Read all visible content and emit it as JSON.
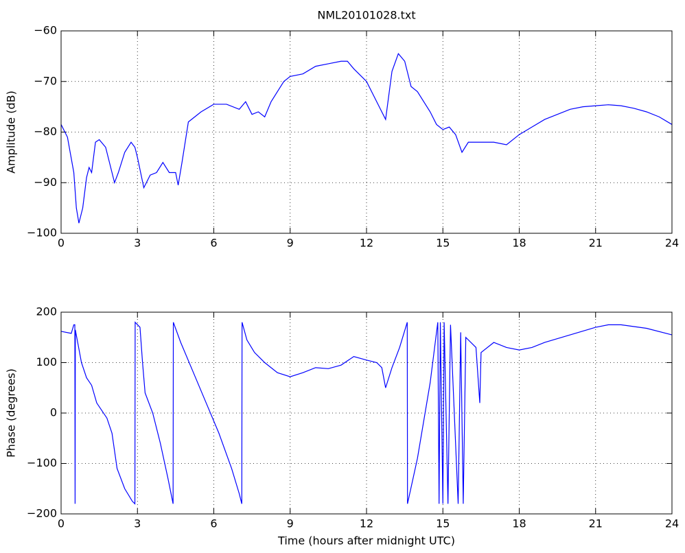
{
  "chart_data": [
    {
      "type": "line",
      "title": "NML20101028.txt",
      "ylabel": "Amplitude (dB)",
      "color": "#0000ff",
      "grid": true,
      "xlim": [
        0,
        24
      ],
      "xticks": [
        0,
        3,
        6,
        9,
        12,
        15,
        18,
        21,
        24
      ],
      "ylim": [
        -100,
        -60
      ],
      "yticks": [
        {
          "value": -100,
          "label": "−100"
        },
        {
          "value": -90,
          "label": "−90"
        },
        {
          "value": -80,
          "label": "−80"
        },
        {
          "value": -70,
          "label": "−70"
        },
        {
          "value": -60,
          "label": "−60"
        }
      ],
      "x": [
        0,
        0.25,
        0.5,
        0.6,
        0.7,
        0.85,
        1.0,
        1.1,
        1.2,
        1.35,
        1.5,
        1.75,
        2.0,
        2.1,
        2.25,
        2.5,
        2.75,
        2.9,
        3.0,
        3.25,
        3.5,
        3.75,
        4.0,
        4.25,
        4.5,
        4.6,
        4.75,
        5.0,
        5.5,
        6.0,
        6.5,
        7.0,
        7.25,
        7.5,
        7.75,
        8.0,
        8.25,
        8.75,
        9.0,
        9.5,
        10.0,
        10.5,
        11.0,
        11.25,
        11.5,
        12.0,
        12.5,
        12.75,
        13.0,
        13.25,
        13.5,
        13.75,
        14.0,
        14.5,
        14.75,
        15.0,
        15.25,
        15.5,
        15.75,
        16.0,
        16.5,
        17.0,
        17.5,
        18.0,
        18.5,
        19.0,
        19.5,
        20.0,
        20.5,
        21.0,
        21.5,
        22.0,
        22.5,
        23.0,
        23.5,
        24.0
      ],
      "values": [
        -78.5,
        -81,
        -88,
        -95,
        -98,
        -95,
        -89,
        -87,
        -88,
        -82,
        -81.5,
        -83,
        -88,
        -90,
        -88,
        -84,
        -82,
        -83,
        -85,
        -91,
        -88.5,
        -88,
        -86,
        -88,
        -88,
        -90.5,
        -86,
        -78,
        -76,
        -74.5,
        -74.5,
        -75.5,
        -74,
        -76.5,
        -76,
        -77,
        -74,
        -70,
        -69,
        -68.5,
        -67,
        -66.5,
        -66,
        -66,
        -67.5,
        -70,
        -75,
        -77.5,
        -68,
        -64.5,
        -66,
        -71,
        -72,
        -76,
        -78.5,
        -79.5,
        -79,
        -80.5,
        -84,
        -82,
        -82,
        -82,
        -82.5,
        -80.5,
        -79,
        -77.5,
        -76.5,
        -75.5,
        -75,
        -74.8,
        -74.6,
        -74.8,
        -75.3,
        -76,
        -77,
        -78.5
      ]
    },
    {
      "type": "line",
      "ylabel": "Phase (degrees)",
      "xlabel": "Time (hours after midnight UTC)",
      "color": "#0000ff",
      "grid": true,
      "xlim": [
        0,
        24
      ],
      "xticks": [
        0,
        3,
        6,
        9,
        12,
        15,
        18,
        21,
        24
      ],
      "ylim": [
        -200,
        200
      ],
      "yticks": [
        {
          "value": -200,
          "label": "−200"
        },
        {
          "value": -100,
          "label": "−100"
        },
        0,
        100,
        200
      ],
      "x": [
        0,
        0.4,
        0.5,
        0.54,
        0.55,
        0.56,
        0.8,
        1.0,
        1.2,
        1.4,
        1.6,
        1.8,
        2.0,
        2.2,
        2.5,
        2.8,
        2.9,
        2.91,
        3.1,
        3.2,
        3.3,
        3.6,
        3.9,
        4.2,
        4.4,
        4.41,
        4.7,
        5.2,
        5.7,
        6.2,
        6.7,
        7.0,
        7.1,
        7.11,
        7.3,
        7.6,
        8.0,
        8.5,
        9.0,
        9.5,
        10.0,
        10.5,
        11.0,
        11.5,
        12.0,
        12.4,
        12.6,
        12.75,
        13.0,
        13.3,
        13.6,
        13.61,
        14.0,
        14.5,
        14.8,
        14.85,
        14.9,
        15.0,
        15.05,
        15.2,
        15.3,
        15.6,
        15.7,
        15.8,
        15.9,
        16.3,
        16.45,
        16.5,
        17.0,
        17.5,
        18.0,
        18.5,
        19.0,
        20.0,
        21.0,
        21.5,
        22.0,
        23.0,
        24.0
      ],
      "values": [
        162,
        158,
        175,
        175,
        -180,
        165,
        100,
        70,
        55,
        20,
        5,
        -10,
        -40,
        -110,
        -150,
        -175,
        -180,
        180,
        170,
        100,
        40,
        0,
        -60,
        -130,
        -180,
        180,
        140,
        80,
        20,
        -40,
        -110,
        -160,
        -180,
        180,
        145,
        120,
        100,
        80,
        72,
        80,
        90,
        88,
        95,
        112,
        105,
        100,
        90,
        50,
        90,
        130,
        180,
        -180,
        -90,
        60,
        180,
        -180,
        180,
        -180,
        180,
        -180,
        175,
        -180,
        160,
        -180,
        150,
        130,
        20,
        120,
        140,
        130,
        125,
        130,
        140,
        155,
        170,
        175,
        175,
        168,
        155
      ]
    }
  ]
}
